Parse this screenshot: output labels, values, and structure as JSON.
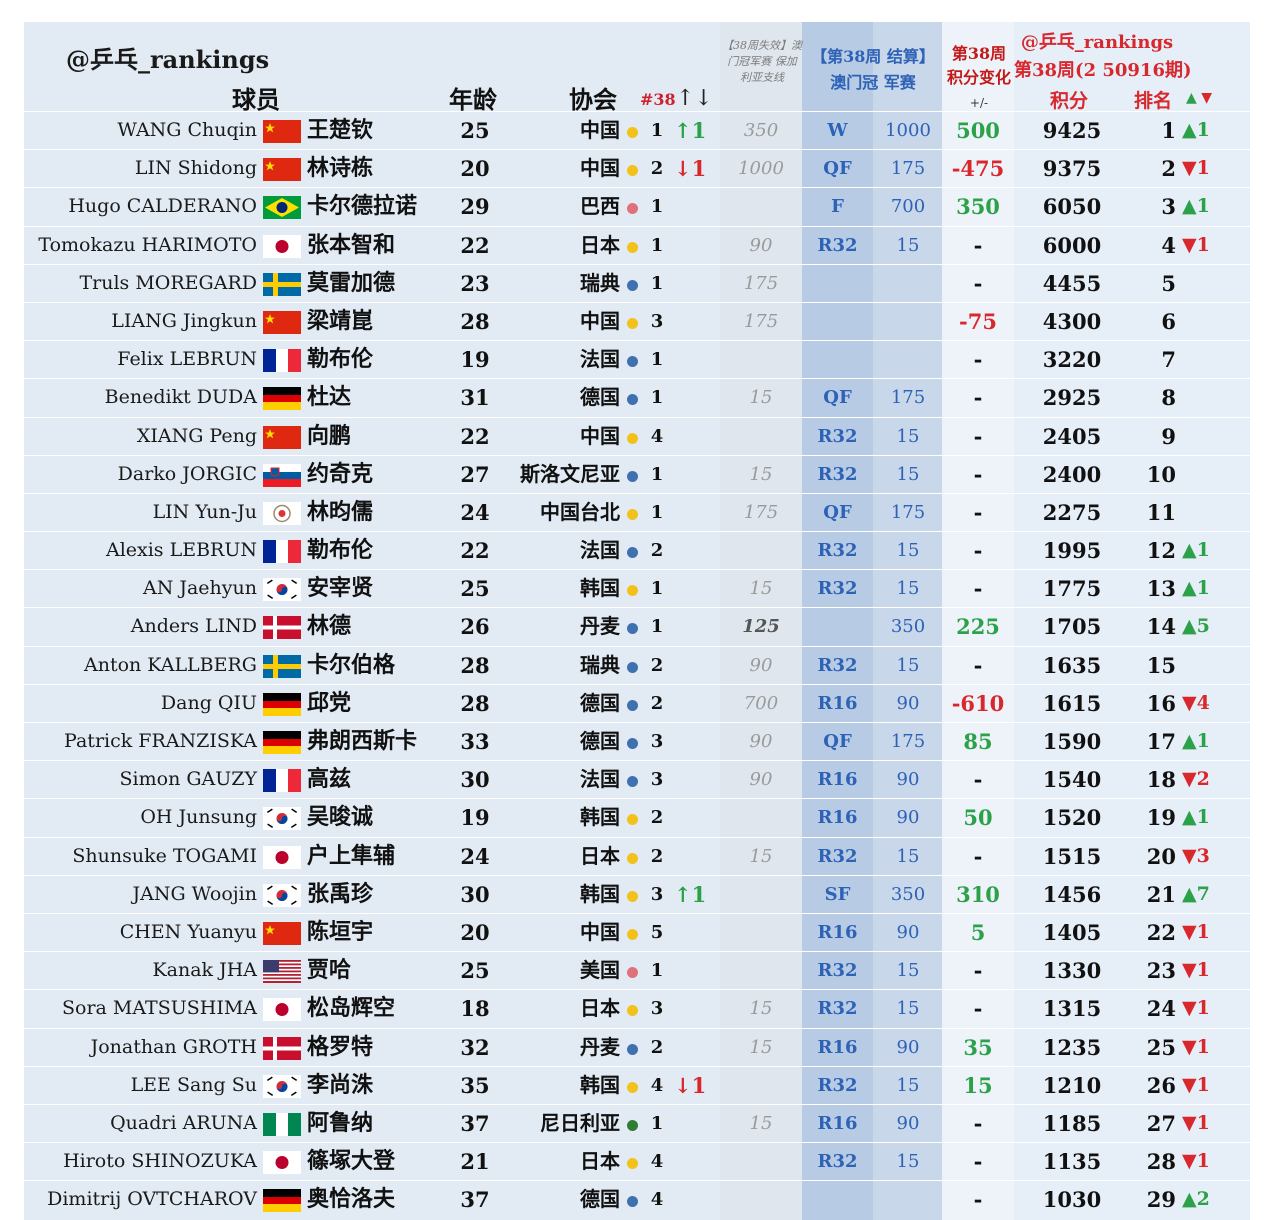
{
  "header": {
    "brand": "@乒乓_rankings",
    "col_player": "球员",
    "col_age": "年龄",
    "col_assoc": "协会",
    "col_nat_rank": "#38",
    "col_nat_updown": "↑↓",
    "col_lost": "【38周失效】澳门冠军赛 保加利亚支线",
    "col_macao": "【第38周 结算】 澳门冠 军赛",
    "col_change": "第38周 积分变化",
    "col_change_pm": "+/-",
    "right_brand": "@乒乓_rankings",
    "right_period": "第38周(2 50916期)",
    "col_points": "积分",
    "col_rank": "排名",
    "col_rank_arrows_up": "▲",
    "col_rank_arrows_down": "▼"
  },
  "colors": {
    "up": "#2ba24a",
    "down": "#d8282e",
    "macao_blue": "#2d62b6",
    "dot_yellow": "#f2c21a",
    "dot_blue": "#3f70b0",
    "dot_red": "#e0707a",
    "dot_green": "#2e7d32"
  },
  "rows": [
    {
      "en": "WANG Chuqin",
      "flag": "china",
      "cn": "王楚钦",
      "age": "25",
      "assoc": "中国",
      "dot": "yellow",
      "nat": "1",
      "natchg": "↑1",
      "natdir": "up",
      "lost": "350",
      "lostbold": false,
      "round": "W",
      "mpts": "1000",
      "pch": "500",
      "pchdir": "up",
      "pts": "9425",
      "rank": "1",
      "rmove": "▲1",
      "rdir": "up"
    },
    {
      "en": "LIN Shidong",
      "flag": "china",
      "cn": "林诗栋",
      "age": "20",
      "assoc": "中国",
      "dot": "yellow",
      "nat": "2",
      "natchg": "↓1",
      "natdir": "down",
      "lost": "1000",
      "lostbold": false,
      "round": "QF",
      "mpts": "175",
      "pch": "-475",
      "pchdir": "down",
      "pts": "9375",
      "rank": "2",
      "rmove": "▼1",
      "rdir": "down"
    },
    {
      "en": "Hugo CALDERANO",
      "flag": "brazil",
      "cn": "卡尔德拉诺",
      "age": "29",
      "assoc": "巴西",
      "dot": "red",
      "nat": "1",
      "natchg": "",
      "natdir": "",
      "lost": "",
      "lostbold": false,
      "round": "F",
      "mpts": "700",
      "pch": "350",
      "pchdir": "up",
      "pts": "6050",
      "rank": "3",
      "rmove": "▲1",
      "rdir": "up"
    },
    {
      "en": "Tomokazu HARIMOTO",
      "flag": "japan",
      "cn": "张本智和",
      "age": "22",
      "assoc": "日本",
      "dot": "yellow",
      "nat": "1",
      "natchg": "",
      "natdir": "",
      "lost": "90",
      "lostbold": false,
      "round": "R32",
      "mpts": "15",
      "pch": "-",
      "pchdir": "",
      "pts": "6000",
      "rank": "4",
      "rmove": "▼1",
      "rdir": "down"
    },
    {
      "en": "Truls MOREGARD",
      "flag": "sweden",
      "cn": "莫雷加德",
      "age": "23",
      "assoc": "瑞典",
      "dot": "blue",
      "nat": "1",
      "natchg": "",
      "natdir": "",
      "lost": "175",
      "lostbold": false,
      "round": "",
      "mpts": "",
      "pch": "-",
      "pchdir": "",
      "pts": "4455",
      "rank": "5",
      "rmove": "",
      "rdir": ""
    },
    {
      "en": "LIANG Jingkun",
      "flag": "china",
      "cn": "梁靖崑",
      "age": "28",
      "assoc": "中国",
      "dot": "yellow",
      "nat": "3",
      "natchg": "",
      "natdir": "",
      "lost": "175",
      "lostbold": false,
      "round": "",
      "mpts": "",
      "pch": "-75",
      "pchdir": "down",
      "pts": "4300",
      "rank": "6",
      "rmove": "",
      "rdir": ""
    },
    {
      "en": "Felix LEBRUN",
      "flag": "france",
      "cn": "勒布伦",
      "age": "19",
      "assoc": "法国",
      "dot": "blue",
      "nat": "1",
      "natchg": "",
      "natdir": "",
      "lost": "",
      "lostbold": false,
      "round": "",
      "mpts": "",
      "pch": "-",
      "pchdir": "",
      "pts": "3220",
      "rank": "7",
      "rmove": "",
      "rdir": ""
    },
    {
      "en": "Benedikt DUDA",
      "flag": "germany",
      "cn": "杜达",
      "age": "31",
      "assoc": "德国",
      "dot": "blue",
      "nat": "1",
      "natchg": "",
      "natdir": "",
      "lost": "15",
      "lostbold": false,
      "round": "QF",
      "mpts": "175",
      "pch": "-",
      "pchdir": "",
      "pts": "2925",
      "rank": "8",
      "rmove": "",
      "rdir": ""
    },
    {
      "en": "XIANG Peng",
      "flag": "china",
      "cn": "向鹏",
      "age": "22",
      "assoc": "中国",
      "dot": "yellow",
      "nat": "4",
      "natchg": "",
      "natdir": "",
      "lost": "",
      "lostbold": false,
      "round": "R32",
      "mpts": "15",
      "pch": "-",
      "pchdir": "",
      "pts": "2405",
      "rank": "9",
      "rmove": "",
      "rdir": ""
    },
    {
      "en": "Darko JORGIC",
      "flag": "slovenia",
      "cn": "约奇克",
      "age": "27",
      "assoc": "斯洛文尼亚",
      "dot": "blue",
      "nat": "1",
      "natchg": "",
      "natdir": "",
      "lost": "15",
      "lostbold": false,
      "round": "R32",
      "mpts": "15",
      "pch": "-",
      "pchdir": "",
      "pts": "2400",
      "rank": "10",
      "rmove": "",
      "rdir": ""
    },
    {
      "en": "LIN Yun-Ju",
      "flag": "tpe",
      "cn": "林昀儒",
      "age": "24",
      "assoc": "中国台北",
      "dot": "yellow",
      "nat": "1",
      "natchg": "",
      "natdir": "",
      "lost": "175",
      "lostbold": false,
      "round": "QF",
      "mpts": "175",
      "pch": "-",
      "pchdir": "",
      "pts": "2275",
      "rank": "11",
      "rmove": "",
      "rdir": ""
    },
    {
      "en": "Alexis LEBRUN",
      "flag": "france",
      "cn": "勒布伦",
      "age": "22",
      "assoc": "法国",
      "dot": "blue",
      "nat": "2",
      "natchg": "",
      "natdir": "",
      "lost": "",
      "lostbold": false,
      "round": "R32",
      "mpts": "15",
      "pch": "-",
      "pchdir": "",
      "pts": "1995",
      "rank": "12",
      "rmove": "▲1",
      "rdir": "up"
    },
    {
      "en": "AN Jaehyun",
      "flag": "korea",
      "cn": "安宰贤",
      "age": "25",
      "assoc": "韩国",
      "dot": "yellow",
      "nat": "1",
      "natchg": "",
      "natdir": "",
      "lost": "15",
      "lostbold": false,
      "round": "R32",
      "mpts": "15",
      "pch": "-",
      "pchdir": "",
      "pts": "1775",
      "rank": "13",
      "rmove": "▲1",
      "rdir": "up"
    },
    {
      "en": "Anders LIND",
      "flag": "denmark",
      "cn": "林德",
      "age": "26",
      "assoc": "丹麦",
      "dot": "blue",
      "nat": "1",
      "natchg": "",
      "natdir": "",
      "lost": "125",
      "lostbold": true,
      "round": "",
      "mpts": "350",
      "pch": "225",
      "pchdir": "up",
      "pts": "1705",
      "rank": "14",
      "rmove": "▲5",
      "rdir": "up"
    },
    {
      "en": "Anton KALLBERG",
      "flag": "sweden",
      "cn": "卡尔伯格",
      "age": "28",
      "assoc": "瑞典",
      "dot": "blue",
      "nat": "2",
      "natchg": "",
      "natdir": "",
      "lost": "90",
      "lostbold": false,
      "round": "R32",
      "mpts": "15",
      "pch": "-",
      "pchdir": "",
      "pts": "1635",
      "rank": "15",
      "rmove": "",
      "rdir": ""
    },
    {
      "en": "Dang QIU",
      "flag": "germany",
      "cn": "邱党",
      "age": "28",
      "assoc": "德国",
      "dot": "blue",
      "nat": "2",
      "natchg": "",
      "natdir": "",
      "lost": "700",
      "lostbold": false,
      "round": "R16",
      "mpts": "90",
      "pch": "-610",
      "pchdir": "down",
      "pts": "1615",
      "rank": "16",
      "rmove": "▼4",
      "rdir": "down"
    },
    {
      "en": "Patrick FRANZISKA",
      "flag": "germany",
      "cn": "弗朗西斯卡",
      "age": "33",
      "assoc": "德国",
      "dot": "blue",
      "nat": "3",
      "natchg": "",
      "natdir": "",
      "lost": "90",
      "lostbold": false,
      "round": "QF",
      "mpts": "175",
      "pch": "85",
      "pchdir": "up",
      "pts": "1590",
      "rank": "17",
      "rmove": "▲1",
      "rdir": "up"
    },
    {
      "en": "Simon GAUZY",
      "flag": "france",
      "cn": "高兹",
      "age": "30",
      "assoc": "法国",
      "dot": "blue",
      "nat": "3",
      "natchg": "",
      "natdir": "",
      "lost": "90",
      "lostbold": false,
      "round": "R16",
      "mpts": "90",
      "pch": "-",
      "pchdir": "",
      "pts": "1540",
      "rank": "18",
      "rmove": "▼2",
      "rdir": "down"
    },
    {
      "en": "OH Junsung",
      "flag": "korea",
      "cn": "吴晙诚",
      "age": "19",
      "assoc": "韩国",
      "dot": "yellow",
      "nat": "2",
      "natchg": "",
      "natdir": "",
      "lost": "",
      "lostbold": false,
      "round": "R16",
      "mpts": "90",
      "pch": "50",
      "pchdir": "up",
      "pts": "1520",
      "rank": "19",
      "rmove": "▲1",
      "rdir": "up"
    },
    {
      "en": "Shunsuke TOGAMI",
      "flag": "japan",
      "cn": "户上隼辅",
      "age": "24",
      "assoc": "日本",
      "dot": "yellow",
      "nat": "2",
      "natchg": "",
      "natdir": "",
      "lost": "15",
      "lostbold": false,
      "round": "R32",
      "mpts": "15",
      "pch": "-",
      "pchdir": "",
      "pts": "1515",
      "rank": "20",
      "rmove": "▼3",
      "rdir": "down"
    },
    {
      "en": "JANG Woojin",
      "flag": "korea",
      "cn": "张禹珍",
      "age": "30",
      "assoc": "韩国",
      "dot": "yellow",
      "nat": "3",
      "natchg": "↑1",
      "natdir": "up",
      "lost": "",
      "lostbold": false,
      "round": "SF",
      "mpts": "350",
      "pch": "310",
      "pchdir": "up",
      "pts": "1456",
      "rank": "21",
      "rmove": "▲7",
      "rdir": "up"
    },
    {
      "en": "CHEN Yuanyu",
      "flag": "china",
      "cn": "陈垣宇",
      "age": "20",
      "assoc": "中国",
      "dot": "yellow",
      "nat": "5",
      "natchg": "",
      "natdir": "",
      "lost": "",
      "lostbold": false,
      "round": "R16",
      "mpts": "90",
      "pch": "5",
      "pchdir": "up",
      "pts": "1405",
      "rank": "22",
      "rmove": "▼1",
      "rdir": "down"
    },
    {
      "en": "Kanak JHA",
      "flag": "usa",
      "cn": "贾哈",
      "age": "25",
      "assoc": "美国",
      "dot": "red",
      "nat": "1",
      "natchg": "",
      "natdir": "",
      "lost": "",
      "lostbold": false,
      "round": "R32",
      "mpts": "15",
      "pch": "-",
      "pchdir": "",
      "pts": "1330",
      "rank": "23",
      "rmove": "▼1",
      "rdir": "down"
    },
    {
      "en": "Sora MATSUSHIMA",
      "flag": "japan",
      "cn": "松岛辉空",
      "age": "18",
      "assoc": "日本",
      "dot": "yellow",
      "nat": "3",
      "natchg": "",
      "natdir": "",
      "lost": "15",
      "lostbold": false,
      "round": "R32",
      "mpts": "15",
      "pch": "-",
      "pchdir": "",
      "pts": "1315",
      "rank": "24",
      "rmove": "▼1",
      "rdir": "down"
    },
    {
      "en": "Jonathan GROTH",
      "flag": "denmark",
      "cn": "格罗特",
      "age": "32",
      "assoc": "丹麦",
      "dot": "blue",
      "nat": "2",
      "natchg": "",
      "natdir": "",
      "lost": "15",
      "lostbold": false,
      "round": "R16",
      "mpts": "90",
      "pch": "35",
      "pchdir": "up",
      "pts": "1235",
      "rank": "25",
      "rmove": "▼1",
      "rdir": "down"
    },
    {
      "en": "LEE Sang Su",
      "flag": "korea",
      "cn": "李尚洙",
      "age": "35",
      "assoc": "韩国",
      "dot": "yellow",
      "nat": "4",
      "natchg": "↓1",
      "natdir": "down",
      "lost": "",
      "lostbold": false,
      "round": "R32",
      "mpts": "15",
      "pch": "15",
      "pchdir": "up",
      "pts": "1210",
      "rank": "26",
      "rmove": "▼1",
      "rdir": "down"
    },
    {
      "en": "Quadri ARUNA",
      "flag": "nigeria",
      "cn": "阿鲁纳",
      "age": "37",
      "assoc": "尼日利亚",
      "dot": "green",
      "nat": "1",
      "natchg": "",
      "natdir": "",
      "lost": "15",
      "lostbold": false,
      "round": "R16",
      "mpts": "90",
      "pch": "-",
      "pchdir": "",
      "pts": "1185",
      "rank": "27",
      "rmove": "▼1",
      "rdir": "down"
    },
    {
      "en": "Hiroto SHINOZUKA",
      "flag": "japan",
      "cn": "篠塚大登",
      "age": "21",
      "assoc": "日本",
      "dot": "yellow",
      "nat": "4",
      "natchg": "",
      "natdir": "",
      "lost": "",
      "lostbold": false,
      "round": "R32",
      "mpts": "15",
      "pch": "-",
      "pchdir": "",
      "pts": "1135",
      "rank": "28",
      "rmove": "▼1",
      "rdir": "down"
    },
    {
      "en": "Dimitrij OVTCHAROV",
      "flag": "germany",
      "cn": "奥恰洛夫",
      "age": "37",
      "assoc": "德国",
      "dot": "blue",
      "nat": "4",
      "natchg": "",
      "natdir": "",
      "lost": "",
      "lostbold": false,
      "round": "",
      "mpts": "",
      "pch": "-",
      "pchdir": "",
      "pts": "1030",
      "rank": "29",
      "rmove": "▲2",
      "rdir": "up"
    }
  ]
}
